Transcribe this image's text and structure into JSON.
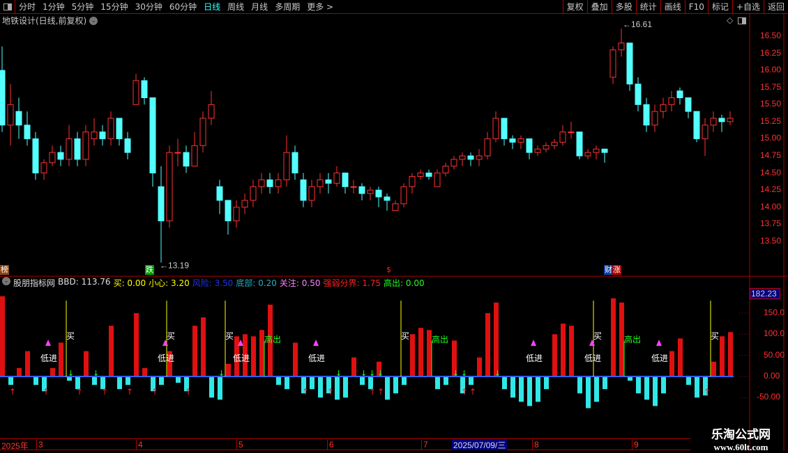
{
  "toolbar": {
    "periods": [
      "分时",
      "1分钟",
      "5分钟",
      "15分钟",
      "30分钟",
      "60分钟",
      "日线",
      "周线",
      "月线",
      "多周期",
      "更多 >"
    ],
    "active": "日线",
    "right_buttons": [
      "复权",
      "叠加",
      "多股",
      "统计",
      "画线",
      "F10",
      "标记",
      "+自选",
      "返回"
    ]
  },
  "title": "地铁设计(日线,前复权)",
  "price_axis": {
    "ticks": [
      "16.50",
      "16.25",
      "16.00",
      "15.75",
      "15.50",
      "15.25",
      "15.00",
      "14.75",
      "14.50",
      "14.25",
      "14.00",
      "13.75",
      "13.50"
    ],
    "max_label": "16.61",
    "min_label": "13.19"
  },
  "tags": [
    {
      "text": "榜",
      "color": "#8b4513"
    },
    {
      "text": "跌",
      "color": "#00a000"
    },
    {
      "text": "$",
      "color": "#ff2020"
    },
    {
      "text": "财",
      "color": "#1040a0"
    },
    {
      "text": "涨",
      "color": "#b00000"
    }
  ],
  "indicator": {
    "name": "股朋指标网",
    "fields": [
      {
        "label": "BBD: 113.76",
        "color": "#e0e0e0"
      },
      {
        "label": "买: 0.00",
        "color": "#ffff00"
      },
      {
        "label": "小心: 3.20",
        "color": "#ffff00"
      },
      {
        "label": "风险: 3.50",
        "color": "#2030ff"
      },
      {
        "label": "底部: 0.20",
        "color": "#20b0c0"
      },
      {
        "label": "关注: 0.50",
        "color": "#ff80ff"
      },
      {
        "label": "强弱分界: 1.75",
        "color": "#ff2020"
      },
      {
        "label": "高出: 0.00",
        "color": "#20ff20"
      }
    ],
    "axis_ticks": [
      "150.0",
      "100.0",
      "50.00",
      "0.00",
      "-50.00"
    ],
    "current_value": "182.23",
    "buy_label": "买",
    "low_label": "低进",
    "high_label": "高出"
  },
  "dates": {
    "year": "2025年",
    "months": [
      "3",
      "4",
      "5",
      "6",
      "7",
      "8",
      "9"
    ],
    "selected": "2025/07/09/三"
  },
  "watermark": {
    "line1": "乐淘公式网",
    "line2": "www.60lt.com"
  },
  "colors": {
    "up": "#ff3232",
    "down": "#54ffff",
    "grid": "#b00000"
  },
  "chart_data": {
    "type": "candlestick",
    "ohlc": [
      [
        16.0,
        16.35,
        15.1,
        15.2
      ],
      [
        15.2,
        15.8,
        14.9,
        15.5
      ],
      [
        15.4,
        15.6,
        15.0,
        15.2
      ],
      [
        15.2,
        15.4,
        14.9,
        15.0
      ],
      [
        15.0,
        15.1,
        14.4,
        14.5
      ],
      [
        14.5,
        14.7,
        14.4,
        14.65
      ],
      [
        14.65,
        14.9,
        14.6,
        14.8
      ],
      [
        14.8,
        14.9,
        14.6,
        14.7
      ],
      [
        14.7,
        15.2,
        14.6,
        15.0
      ],
      [
        15.0,
        15.1,
        14.6,
        14.7
      ],
      [
        14.7,
        15.2,
        14.6,
        15.1
      ],
      [
        15.0,
        15.3,
        14.9,
        15.1
      ],
      [
        15.1,
        15.2,
        14.9,
        15.0
      ],
      [
        15.0,
        15.4,
        14.9,
        15.3
      ],
      [
        15.3,
        15.3,
        14.9,
        15.0
      ],
      [
        15.0,
        15.1,
        14.7,
        14.8
      ],
      [
        15.5,
        15.95,
        15.5,
        15.85
      ],
      [
        15.85,
        15.9,
        15.5,
        15.6
      ],
      [
        15.6,
        15.6,
        14.3,
        14.5
      ],
      [
        14.3,
        14.6,
        13.19,
        13.8
      ],
      [
        13.8,
        14.9,
        13.7,
        14.8
      ],
      [
        14.8,
        15.0,
        14.6,
        14.8
      ],
      [
        14.8,
        14.9,
        14.5,
        14.6
      ],
      [
        14.6,
        15.1,
        14.6,
        14.9
      ],
      [
        14.9,
        15.4,
        14.8,
        15.3
      ],
      [
        15.3,
        15.7,
        15.2,
        15.5
      ],
      [
        14.3,
        14.4,
        13.9,
        14.1
      ],
      [
        14.1,
        14.1,
        13.6,
        13.8
      ],
      [
        13.8,
        14.1,
        13.7,
        14.0
      ],
      [
        14.0,
        14.2,
        13.9,
        14.1
      ],
      [
        14.1,
        14.4,
        14.0,
        14.3
      ],
      [
        14.3,
        14.5,
        14.2,
        14.4
      ],
      [
        14.4,
        14.5,
        14.2,
        14.3
      ],
      [
        14.3,
        14.5,
        14.2,
        14.4
      ],
      [
        14.4,
        15.05,
        14.3,
        14.8
      ],
      [
        14.8,
        14.9,
        14.4,
        14.5
      ],
      [
        14.4,
        14.5,
        14.0,
        14.1
      ],
      [
        14.1,
        14.4,
        14.0,
        14.3
      ],
      [
        14.3,
        14.5,
        14.2,
        14.4
      ],
      [
        14.4,
        14.5,
        14.2,
        14.35
      ],
      [
        14.35,
        14.6,
        14.3,
        14.5
      ],
      [
        14.5,
        14.5,
        14.2,
        14.3
      ],
      [
        14.3,
        14.4,
        14.2,
        14.3
      ],
      [
        14.3,
        14.35,
        14.1,
        14.2
      ],
      [
        14.2,
        14.3,
        14.1,
        14.25
      ],
      [
        14.25,
        14.3,
        14.0,
        14.15
      ],
      [
        14.15,
        14.2,
        13.95,
        14.1
      ],
      [
        13.95,
        14.1,
        13.95,
        14.05
      ],
      [
        14.05,
        14.35,
        14.0,
        14.3
      ],
      [
        14.3,
        14.5,
        14.2,
        14.45
      ],
      [
        14.45,
        14.55,
        14.4,
        14.5
      ],
      [
        14.5,
        14.55,
        14.4,
        14.45
      ],
      [
        14.3,
        14.55,
        14.3,
        14.5
      ],
      [
        14.5,
        14.65,
        14.45,
        14.6
      ],
      [
        14.6,
        14.75,
        14.55,
        14.7
      ],
      [
        14.7,
        14.8,
        14.6,
        14.75
      ],
      [
        14.75,
        14.8,
        14.6,
        14.7
      ],
      [
        14.7,
        14.85,
        14.6,
        14.75
      ],
      [
        14.75,
        15.1,
        14.7,
        15.0
      ],
      [
        15.0,
        15.4,
        14.95,
        15.3
      ],
      [
        15.3,
        15.3,
        14.9,
        15.0
      ],
      [
        15.0,
        15.05,
        14.85,
        14.95
      ],
      [
        14.95,
        15.05,
        14.85,
        15.0
      ],
      [
        15.0,
        15.0,
        14.7,
        14.8
      ],
      [
        14.8,
        14.9,
        14.75,
        14.85
      ],
      [
        14.85,
        14.95,
        14.8,
        14.9
      ],
      [
        14.9,
        15.0,
        14.85,
        14.95
      ],
      [
        14.95,
        15.2,
        14.9,
        15.1
      ],
      [
        15.1,
        15.25,
        15.0,
        15.1
      ],
      [
        15.1,
        15.1,
        14.7,
        14.75
      ],
      [
        14.75,
        14.85,
        14.7,
        14.8
      ],
      [
        14.8,
        14.9,
        14.7,
        14.85
      ],
      [
        14.85,
        14.85,
        14.65,
        14.8
      ],
      [
        15.9,
        16.35,
        15.8,
        16.3
      ],
      [
        16.3,
        16.61,
        16.2,
        16.4
      ],
      [
        16.4,
        16.4,
        15.7,
        15.8
      ],
      [
        15.8,
        15.9,
        15.4,
        15.5
      ],
      [
        15.5,
        15.6,
        15.1,
        15.2
      ],
      [
        15.2,
        15.5,
        15.1,
        15.4
      ],
      [
        15.4,
        15.6,
        15.3,
        15.5
      ],
      [
        15.5,
        15.7,
        15.4,
        15.6
      ],
      [
        15.7,
        15.75,
        15.5,
        15.6
      ],
      [
        15.6,
        15.6,
        15.3,
        15.4
      ],
      [
        15.4,
        15.4,
        14.95,
        15.0
      ],
      [
        15.0,
        15.3,
        14.75,
        15.2
      ],
      [
        15.2,
        15.4,
        15.1,
        15.3
      ],
      [
        15.3,
        15.35,
        15.1,
        15.25
      ],
      [
        15.25,
        15.4,
        15.2,
        15.3
      ]
    ],
    "bbd": [
      190,
      -20,
      20,
      60,
      -20,
      -35,
      20,
      80,
      -10,
      -30,
      60,
      -20,
      -30,
      120,
      -30,
      -20,
      150,
      20,
      -35,
      -20,
      60,
      -15,
      -35,
      120,
      140,
      -50,
      -55,
      30,
      95,
      100,
      95,
      110,
      170,
      -20,
      -30,
      80,
      -40,
      -30,
      -50,
      -40,
      -55,
      -50,
      45,
      -20,
      -30,
      35,
      -55,
      -40,
      -20,
      100,
      115,
      110,
      -30,
      -20,
      85,
      -40,
      -20,
      45,
      150,
      175,
      -30,
      -50,
      -60,
      -70,
      -60,
      -30,
      100,
      125,
      120,
      -40,
      -75,
      -60,
      -30,
      185,
      175,
      -10,
      -40,
      -55,
      -70,
      -40,
      60,
      90,
      -20,
      -50,
      -45,
      35,
      95,
      105
    ],
    "buy_signals": [
      7,
      19,
      26,
      47,
      70,
      84
    ],
    "low_entry_signals": [
      5,
      19,
      28,
      37,
      63,
      70,
      78
    ],
    "high_exit_signals": [
      31,
      51,
      74
    ],
    "up_arrows": [
      1,
      5,
      9,
      12,
      15,
      18,
      22,
      36,
      39,
      44,
      45,
      55,
      56,
      84
    ],
    "down_arrows": [
      8,
      11,
      26,
      40,
      43,
      44,
      45,
      54,
      55,
      59
    ],
    "price_range": [
      13.19,
      16.61
    ],
    "bbd_axis": [
      -60,
      185
    ]
  }
}
